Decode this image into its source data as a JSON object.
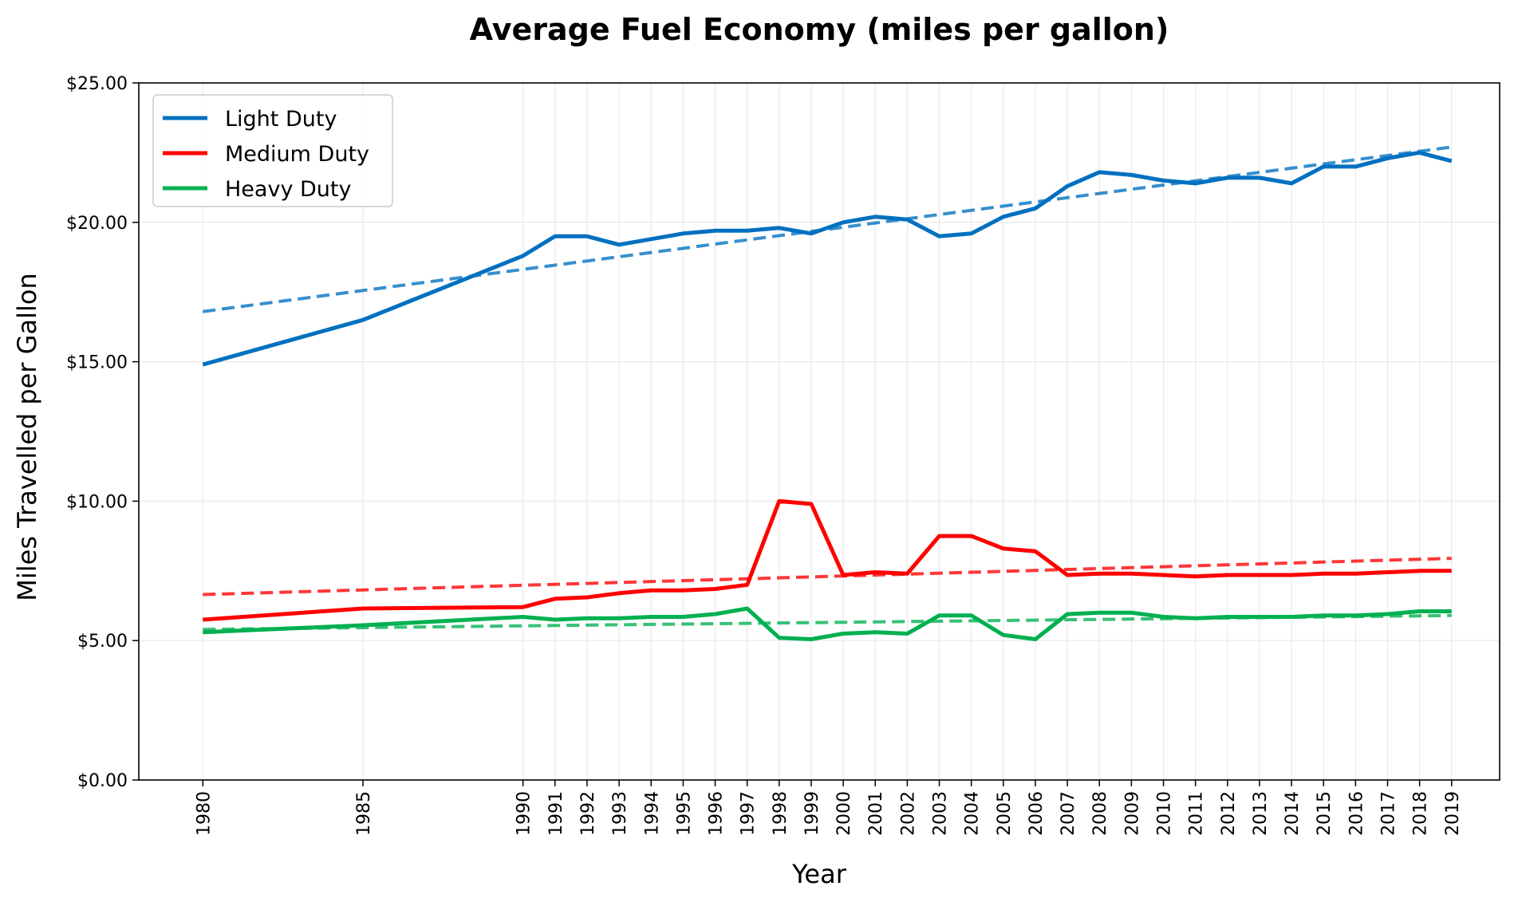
{
  "chart_data": {
    "type": "line",
    "title": "Average Fuel Economy (miles per gallon)",
    "xlabel": "Year",
    "ylabel": "Miles Travelled per Gallon",
    "ylim": [
      0,
      25
    ],
    "xlim": [
      1978,
      2020.5
    ],
    "y_ticks": [
      0,
      5,
      10,
      15,
      20,
      25
    ],
    "y_tick_labels": [
      "$0.00",
      "$5.00",
      "$10.00",
      "$15.00",
      "$20.00",
      "$25.00"
    ],
    "x": [
      1980,
      1985,
      1990,
      1991,
      1992,
      1993,
      1994,
      1995,
      1996,
      1997,
      1998,
      1999,
      2000,
      2001,
      2002,
      2003,
      2004,
      2005,
      2006,
      2007,
      2008,
      2009,
      2010,
      2011,
      2012,
      2013,
      2014,
      2015,
      2016,
      2017,
      2018,
      2019
    ],
    "x_tick_labels": [
      "1980",
      "1985",
      "1990",
      "1991",
      "1992",
      "1993",
      "1994",
      "1995",
      "1996",
      "1997",
      "1998",
      "1999",
      "2000",
      "2001",
      "2002",
      "2003",
      "2004",
      "2005",
      "2006",
      "2007",
      "2008",
      "2009",
      "2010",
      "2011",
      "2012",
      "2013",
      "2014",
      "2015",
      "2016",
      "2017",
      "2018",
      "2019"
    ],
    "grid": true,
    "legend_position": "top-left",
    "series": [
      {
        "name": "Light Duty",
        "color": "#0070C0",
        "values": [
          14.9,
          16.5,
          18.8,
          19.5,
          19.5,
          19.2,
          19.4,
          19.6,
          19.7,
          19.7,
          19.8,
          19.6,
          20.0,
          20.2,
          20.1,
          19.5,
          19.6,
          20.2,
          20.5,
          21.3,
          21.8,
          21.7,
          21.5,
          21.4,
          21.6,
          21.6,
          21.4,
          22.0,
          22.0,
          22.3,
          22.5,
          22.2
        ],
        "trend": [
          16.8,
          22.7
        ]
      },
      {
        "name": "Medium Duty",
        "color": "#FF0000",
        "values": [
          5.75,
          6.15,
          6.2,
          6.5,
          6.55,
          6.7,
          6.8,
          6.8,
          6.85,
          7.0,
          10.0,
          9.9,
          7.35,
          7.45,
          7.4,
          8.75,
          8.75,
          8.3,
          8.2,
          7.35,
          7.4,
          7.4,
          7.35,
          7.3,
          7.35,
          7.35,
          7.35,
          7.4,
          7.4,
          7.45,
          7.5,
          7.5
        ],
        "trend": [
          6.65,
          7.95
        ]
      },
      {
        "name": "Heavy Duty",
        "color": "#00B050",
        "values": [
          5.3,
          5.55,
          5.85,
          5.75,
          5.8,
          5.8,
          5.85,
          5.85,
          5.95,
          6.15,
          5.1,
          5.05,
          5.25,
          5.3,
          5.25,
          5.9,
          5.9,
          5.2,
          5.05,
          5.95,
          6.0,
          6.0,
          5.85,
          5.8,
          5.85,
          5.85,
          5.85,
          5.9,
          5.9,
          5.95,
          6.05,
          6.05
        ],
        "trend": [
          5.4,
          5.9
        ]
      }
    ]
  }
}
